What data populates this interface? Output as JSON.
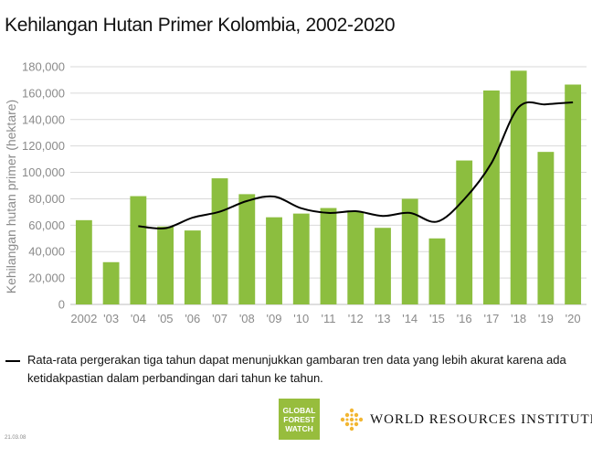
{
  "title": "Kehilangan Hutan Primer Kolombia, 2002-2020",
  "legend_text": "Rata-rata pergerakan tiga tahun dapat menunjukkan gambaran tren data yang lebih akurat karena ada ketidakpastian dalam perbandingan dari tahun ke tahun.",
  "gfw_logo": {
    "line1": "GLOBAL",
    "line2": "FOREST",
    "line3": "WATCH"
  },
  "wri_logo_text": "WORLD RESOURCES INSTITUTE",
  "footnote": "21.03.08",
  "colors": {
    "bar": "#8cbe3f",
    "line": "#000000",
    "grid": "#d9d9d9",
    "gfw": "#97bd3d",
    "wri": "#f2b632"
  },
  "icons": [
    "gfw-logo",
    "wri-logo-icon"
  ],
  "chart_data": {
    "type": "bar",
    "categories": [
      "2002",
      "'03",
      "'04",
      "'05",
      "'06",
      "'07",
      "'08",
      "'09",
      "'10",
      "'11",
      "'12",
      "'13",
      "'14",
      "'15",
      "'16",
      "'17",
      "'18",
      "'19",
      "'20"
    ],
    "series": [
      {
        "values": [
          63800,
          32000,
          82000,
          59000,
          56000,
          95500,
          83500,
          66000,
          68800,
          73000,
          70000,
          58000,
          80000,
          50000,
          109000,
          162000,
          177000,
          115500,
          166500
        ]
      }
    ],
    "moving_average": [
      null,
      null,
      59300,
      57700,
      65700,
      70200,
      78300,
      81700,
      72800,
      69300,
      70600,
      67000,
      69300,
      62700,
      79700,
      107000,
      149300,
      151500,
      153000
    ],
    "ylabel": "Kehilangan hutan primer (hektare)",
    "ylim": [
      0,
      180000
    ],
    "yticks": [
      "0",
      "20,000",
      "40,000",
      "60,000",
      "80,000",
      "100,000",
      "120,000",
      "140,000",
      "160,000",
      "180,000"
    ],
    "grid": true
  }
}
